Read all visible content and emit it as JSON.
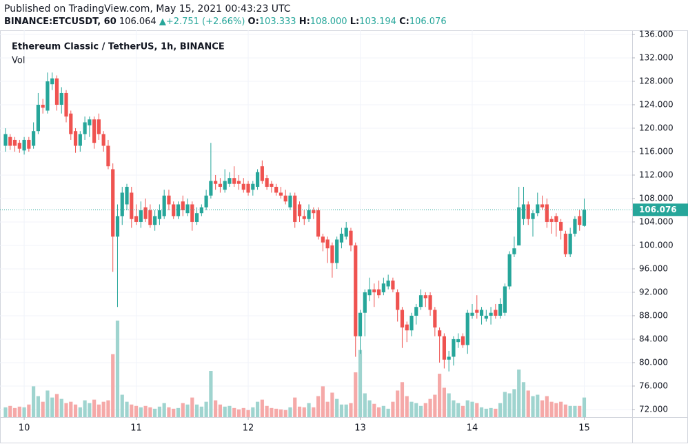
{
  "header": {
    "published": "Published on TradingView.com, May 15, 2021 00:43:23 UTC",
    "symbol": "BINANCE:ETCUSDT, 60",
    "price": "106.064",
    "change": "+2.751 (+2.66%)",
    "ohlc": [
      {
        "label": "O:",
        "value": "103.333"
      },
      {
        "label": "H:",
        "value": "108.000"
      },
      {
        "label": "L:",
        "value": "103.194"
      },
      {
        "label": "C:",
        "value": "106.076"
      }
    ]
  },
  "chart_data": {
    "type": "candlestick",
    "title": "Ethereum Classic / TetherUS, 1h, BINANCE",
    "volume_label": "Vol",
    "last_label": "106.076",
    "up_color": "#26a69a",
    "down_color": "#ef5350",
    "volume_up_color": "#9fd4cf",
    "volume_down_color": "#f5a9a8",
    "categories": [
      null,
      null,
      null,
      null,
      "10",
      null,
      null,
      null,
      null,
      null,
      null,
      null,
      null,
      null,
      null,
      null,
      null,
      null,
      null,
      null,
      null,
      null,
      null,
      null,
      null,
      null,
      null,
      null,
      "11",
      null,
      null,
      null,
      null,
      null,
      null,
      null,
      null,
      null,
      null,
      null,
      null,
      null,
      null,
      null,
      null,
      null,
      null,
      null,
      null,
      null,
      null,
      null,
      "12",
      null,
      null,
      null,
      null,
      null,
      null,
      null,
      null,
      null,
      null,
      null,
      null,
      null,
      null,
      null,
      null,
      null,
      null,
      null,
      null,
      null,
      null,
      null,
      "13",
      null,
      null,
      null,
      null,
      null,
      null,
      null,
      null,
      null,
      null,
      null,
      null,
      null,
      null,
      null,
      null,
      null,
      null,
      null,
      null,
      null,
      null,
      null,
      "14",
      null,
      null,
      null,
      null,
      null,
      null,
      null,
      null,
      null,
      null,
      null,
      null,
      null,
      null,
      null,
      null,
      null,
      null,
      null,
      null,
      null,
      null,
      null,
      "15"
    ],
    "open": [
      117,
      118.5,
      118,
      117.5,
      116.2,
      118,
      117,
      119.5,
      124,
      123,
      127.5,
      128.5,
      124,
      126,
      122.5,
      119.5,
      117,
      119,
      120.5,
      121.5,
      121.5,
      119,
      117,
      113,
      101.5,
      105,
      107,
      109,
      105,
      104,
      106.5,
      106,
      103.5,
      104.5,
      105,
      108.5,
      107,
      105,
      107.5,
      105.5,
      107,
      104,
      105.5,
      106.5,
      108.5,
      111,
      110.5,
      109.5,
      110.5,
      111.5,
      111,
      110.5,
      110.5,
      109.5,
      110,
      113.5,
      111.5,
      110.5,
      110,
      109,
      108.5,
      106.5,
      108.5,
      107,
      105,
      104.5,
      106,
      106,
      101.5,
      101,
      100,
      97,
      100.5,
      101.5,
      102.5,
      100,
      84.5,
      88.5,
      91.5,
      92.5,
      92.5,
      92,
      93,
      94,
      92,
      89,
      86.5,
      85.5,
      88,
      89.5,
      91.5,
      91.5,
      89,
      85.5,
      84.5,
      80.5,
      81,
      83.5,
      84.5,
      83,
      88,
      89,
      88,
      87.5,
      88,
      89,
      88,
      88.5,
      93,
      98.5,
      100,
      104.5,
      107,
      104.5,
      105.5,
      107,
      107,
      104.5,
      105,
      104,
      102,
      98.5,
      102,
      105,
      103.333
    ],
    "high": [
      120,
      119,
      118.5,
      118,
      118.5,
      118.5,
      121,
      126,
      125,
      129.5,
      129.5,
      129,
      127,
      126.5,
      123,
      120,
      119.5,
      122,
      122,
      122,
      122.5,
      119.5,
      118,
      114,
      107,
      110,
      110.5,
      110,
      107,
      107.5,
      108,
      107,
      106,
      107,
      109.5,
      109.5,
      107.5,
      107.5,
      108.5,
      108,
      107.5,
      106.5,
      107,
      109.5,
      117.5,
      112,
      111.5,
      113,
      112.5,
      113.5,
      112,
      111.5,
      111,
      111,
      113,
      114.5,
      112,
      111,
      110.5,
      110,
      109.5,
      109,
      109,
      107.5,
      106,
      107,
      106.5,
      106.5,
      102,
      101.5,
      100.5,
      101.5,
      103,
      104,
      103,
      100.5,
      89,
      92.5,
      94.5,
      93.5,
      94,
      94.5,
      95,
      94.5,
      92.5,
      89.5,
      87,
      88.5,
      90,
      92.5,
      92,
      92,
      89.5,
      86,
      85,
      82,
      84.5,
      85,
      85,
      89,
      90,
      91.5,
      89.5,
      89,
      89.5,
      90,
      91,
      93.5,
      99,
      101.5,
      110,
      110,
      107.5,
      106,
      109,
      108.5,
      108,
      105,
      105.5,
      104.5,
      102.5,
      103,
      105,
      106,
      108
    ],
    "low": [
      116,
      116.3,
      116,
      115.8,
      115.5,
      116,
      116.5,
      119,
      122.5,
      122.5,
      126.5,
      123,
      122.5,
      121,
      118,
      115.8,
      116,
      118,
      118.5,
      116.5,
      118,
      116,
      113,
      95.5,
      89.5,
      103.5,
      106,
      103,
      103.5,
      103,
      104,
      103,
      102.5,
      103.5,
      104.5,
      106,
      104.5,
      104.5,
      105,
      105,
      102.5,
      103.5,
      105,
      106,
      108,
      109.5,
      109,
      109,
      110,
      110,
      109.5,
      109,
      108.5,
      108.5,
      109.5,
      110.5,
      109.5,
      109,
      108.5,
      108,
      107,
      106,
      103,
      104,
      103.5,
      104,
      104.5,
      101,
      99,
      97,
      94.5,
      96,
      99.5,
      101,
      99,
      81,
      81.5,
      84.5,
      90.5,
      89.5,
      91,
      91.5,
      92.5,
      92,
      87,
      82.5,
      83.5,
      84.5,
      86.5,
      89,
      89.5,
      88,
      84.5,
      80,
      79,
      78.5,
      79.5,
      82.5,
      82.5,
      81.5,
      87.5,
      87.5,
      86.5,
      87,
      86.5,
      87.5,
      87.5,
      88,
      92.5,
      98,
      100,
      103.5,
      103.5,
      101.5,
      105,
      106,
      103,
      102,
      101.5,
      101,
      98,
      98,
      101.5,
      102.5,
      103.194
    ],
    "close": [
      119,
      117,
      117,
      116.5,
      118,
      116.5,
      119.5,
      124,
      123.5,
      128,
      128.5,
      124,
      126,
      122,
      119,
      117,
      119,
      121,
      121.5,
      117.5,
      119,
      117,
      113.5,
      101.5,
      105,
      109,
      110,
      104.5,
      104,
      106,
      104.5,
      103.5,
      105,
      106,
      108.5,
      107,
      105,
      107,
      106,
      107,
      104,
      105.5,
      106.5,
      108.5,
      111,
      110.5,
      110,
      111,
      111.5,
      110.5,
      110.5,
      109.5,
      109,
      110.5,
      112.5,
      111,
      110,
      110,
      109,
      108.5,
      107.5,
      108.5,
      104,
      105,
      104.5,
      106,
      105.5,
      101.5,
      100.5,
      99.5,
      97,
      101,
      102,
      103,
      100,
      84.5,
      88.5,
      92,
      92.5,
      92,
      91.5,
      93.5,
      94,
      92.5,
      89,
      86,
      85.5,
      88,
      89.5,
      91.5,
      91,
      89,
      86,
      84.5,
      80.5,
      81,
      84,
      84,
      83,
      88.5,
      88.5,
      88.5,
      89,
      88,
      88.5,
      88,
      90,
      93,
      98.5,
      99.5,
      106.5,
      107,
      104.5,
      105.5,
      107,
      106.5,
      104,
      104,
      104,
      102.5,
      98.5,
      102,
      104.5,
      103.5,
      106.076
    ],
    "volume": [
      14,
      16,
      13,
      15,
      14,
      18,
      44,
      30,
      22,
      38,
      28,
      33,
      26,
      20,
      22,
      18,
      14,
      24,
      20,
      25,
      18,
      22,
      24,
      90,
      138,
      32,
      22,
      18,
      16,
      14,
      16,
      14,
      12,
      15,
      20,
      14,
      12,
      13,
      20,
      18,
      28,
      18,
      15,
      22,
      66,
      24,
      18,
      15,
      16,
      13,
      11,
      13,
      10,
      14,
      22,
      25,
      16,
      13,
      12,
      11,
      10,
      14,
      28,
      15,
      14,
      20,
      14,
      30,
      44,
      22,
      35,
      26,
      18,
      18,
      20,
      64,
      96,
      34,
      24,
      19,
      14,
      16,
      12,
      22,
      38,
      50,
      30,
      22,
      20,
      16,
      20,
      26,
      32,
      62,
      42,
      34,
      24,
      20,
      16,
      24,
      22,
      20,
      14,
      12,
      13,
      12,
      20,
      36,
      34,
      40,
      68,
      50,
      38,
      30,
      32,
      24,
      30,
      22,
      20,
      22,
      18,
      16,
      16,
      16,
      28
    ],
    "ylim": [
      70.7,
      136.7
    ],
    "yticks": [
      {
        "value": 72,
        "label": "72.000"
      },
      {
        "value": 76,
        "label": "76.000"
      },
      {
        "value": 80,
        "label": "80.000"
      },
      {
        "value": 84,
        "label": "84.000"
      },
      {
        "value": 88,
        "label": "88.000"
      },
      {
        "value": 92,
        "label": "92.000"
      },
      {
        "value": 96,
        "label": "96.000"
      },
      {
        "value": 100,
        "label": "100.000"
      },
      {
        "value": 104,
        "label": "104.000"
      },
      {
        "value": 108,
        "label": "108.000"
      },
      {
        "value": 112,
        "label": "112.000"
      },
      {
        "value": 116,
        "label": "116.000"
      },
      {
        "value": 120,
        "label": "120.000"
      },
      {
        "value": 124,
        "label": "124.000"
      },
      {
        "value": 128,
        "label": "128.000"
      },
      {
        "value": 132,
        "label": "132.000"
      },
      {
        "value": 136,
        "label": "136.000"
      }
    ],
    "grid": true
  }
}
